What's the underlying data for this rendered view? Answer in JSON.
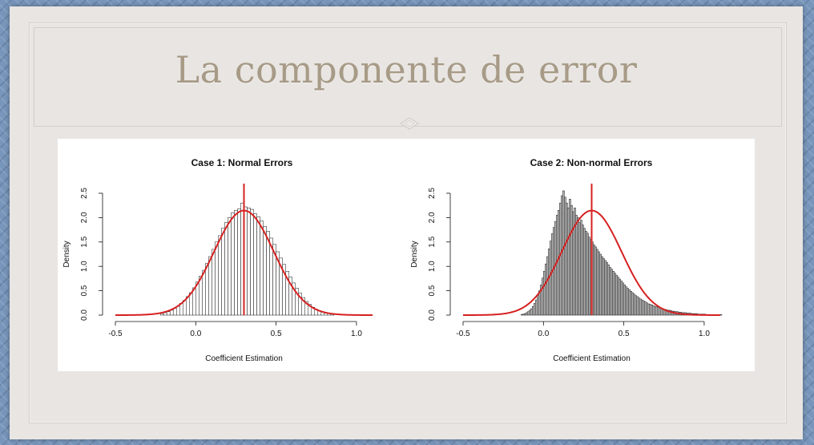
{
  "slide": {
    "title": "La componente de error"
  },
  "chart_data": [
    {
      "type": "histogram",
      "title": "Case 1: Normal Errors",
      "xlabel": "Coefficient Estimation",
      "ylabel": "Density",
      "xlim": [
        -0.5,
        1.1
      ],
      "ylim": [
        0,
        2.5
      ],
      "x_ticks": [
        "-0.5",
        "0.0",
        "0.5",
        "1.0"
      ],
      "y_ticks": [
        "0.0",
        "0.5",
        "1.0",
        "1.5",
        "2.0",
        "2.5"
      ],
      "bin_width": 0.02,
      "bins_start": -0.22,
      "densities": [
        0.03,
        0.05,
        0.07,
        0.1,
        0.14,
        0.18,
        0.24,
        0.3,
        0.38,
        0.46,
        0.56,
        0.68,
        0.8,
        0.92,
        1.06,
        1.2,
        1.35,
        1.5,
        1.63,
        1.78,
        1.9,
        2.0,
        2.1,
        2.15,
        2.18,
        2.3,
        2.22,
        2.2,
        2.17,
        2.08,
        2.02,
        1.93,
        1.82,
        1.72,
        1.58,
        1.45,
        1.3,
        1.17,
        1.04,
        0.9,
        0.78,
        0.66,
        0.55,
        0.45,
        0.36,
        0.28,
        0.22,
        0.16,
        0.12,
        0.09,
        0.06,
        0.04,
        0.03,
        0.02
      ],
      "curve": {
        "type": "normal",
        "mean": 0.3,
        "sd": 0.186,
        "color": "#d62020"
      },
      "vline": {
        "x": 0.3,
        "color": "#d62020"
      },
      "bar_fill": "#ffffff"
    },
    {
      "type": "histogram",
      "title": "Case 2: Non-normal Errors",
      "xlabel": "Coefficient Estimation",
      "ylabel": "Density",
      "xlim": [
        -0.5,
        1.1
      ],
      "ylim": [
        0,
        2.5
      ],
      "x_ticks": [
        "-0.5",
        "0.0",
        "0.5",
        "1.0"
      ],
      "y_ticks": [
        "0.0",
        "0.5",
        "1.0",
        "1.5",
        "2.0",
        "2.5"
      ],
      "bin_width": 0.01,
      "bins_start": -0.14,
      "densities": [
        0.01,
        0.02,
        0.03,
        0.05,
        0.07,
        0.1,
        0.13,
        0.18,
        0.24,
        0.31,
        0.4,
        0.5,
        0.62,
        0.76,
        0.9,
        1.05,
        1.2,
        1.36,
        1.52,
        1.67,
        1.8,
        1.92,
        2.05,
        2.15,
        2.3,
        2.45,
        2.55,
        2.42,
        2.3,
        2.2,
        2.38,
        2.25,
        2.12,
        2.2,
        2.05,
        2.0,
        1.9,
        1.95,
        1.85,
        1.78,
        1.72,
        1.68,
        1.6,
        1.55,
        1.5,
        1.44,
        1.4,
        1.35,
        1.3,
        1.25,
        1.2,
        1.16,
        1.12,
        1.08,
        1.03,
        0.98,
        0.94,
        0.9,
        0.86,
        0.82,
        0.78,
        0.74,
        0.7,
        0.66,
        0.62,
        0.58,
        0.55,
        0.52,
        0.49,
        0.46,
        0.43,
        0.4,
        0.38,
        0.35,
        0.33,
        0.31,
        0.29,
        0.27,
        0.25,
        0.23,
        0.22,
        0.21,
        0.19,
        0.18,
        0.17,
        0.16,
        0.15,
        0.14,
        0.13,
        0.12,
        0.11,
        0.1,
        0.1,
        0.09,
        0.08,
        0.08,
        0.07,
        0.07,
        0.06,
        0.06,
        0.05,
        0.05,
        0.05,
        0.04,
        0.04,
        0.04,
        0.03,
        0.03,
        0.03,
        0.03,
        0.02,
        0.02,
        0.02,
        0.02,
        0.02,
        0.01,
        0.01,
        0.01,
        0.01,
        0.01,
        0.01,
        0.01,
        0.01,
        0.01,
        0.01
      ],
      "curve": {
        "type": "normal",
        "mean": 0.3,
        "sd": 0.186,
        "color": "#d62020"
      },
      "vline": {
        "x": 0.3,
        "color": "#d62020"
      },
      "bar_fill": "#bdbdbd"
    }
  ]
}
